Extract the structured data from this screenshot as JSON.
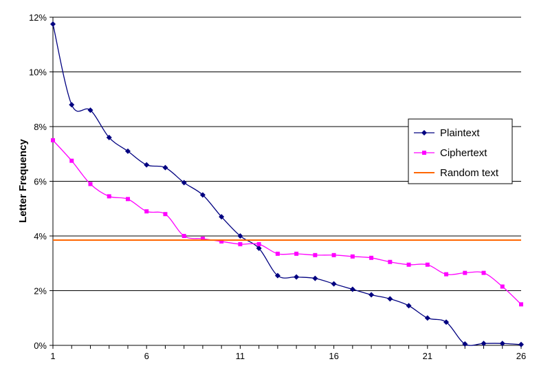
{
  "chart_data": {
    "type": "line",
    "title": "",
    "xlabel": "",
    "ylabel": "Letter Frequency",
    "x": [
      1,
      2,
      3,
      4,
      5,
      6,
      7,
      8,
      9,
      10,
      11,
      12,
      13,
      14,
      15,
      16,
      17,
      18,
      19,
      20,
      21,
      22,
      23,
      24,
      25,
      26
    ],
    "x_ticks": [
      1,
      6,
      11,
      16,
      21,
      26
    ],
    "x_tick_labels": [
      "1",
      "6",
      "11",
      "16",
      "21",
      "26"
    ],
    "xlim": [
      1,
      26
    ],
    "ylim": [
      0,
      12
    ],
    "y_ticks": [
      0,
      2,
      4,
      6,
      8,
      10,
      12
    ],
    "y_tick_labels": [
      "0%",
      "2%",
      "4%",
      "6%",
      "8%",
      "10%",
      "12%"
    ],
    "grid": "horizontal",
    "legend_position": "right",
    "series": [
      {
        "name": "Plaintext",
        "color": "#000080",
        "marker": "diamond",
        "values": [
          11.75,
          8.8,
          8.6,
          7.6,
          7.1,
          6.6,
          6.5,
          5.95,
          5.5,
          4.7,
          4.0,
          3.55,
          2.55,
          2.5,
          2.45,
          2.25,
          2.05,
          1.85,
          1.7,
          1.45,
          1.0,
          0.85,
          0.05,
          0.07,
          0.07,
          0.03
        ]
      },
      {
        "name": "Ciphertext",
        "color": "#ff00ff",
        "marker": "square",
        "values": [
          7.5,
          6.75,
          5.9,
          5.45,
          5.35,
          4.9,
          4.8,
          4.0,
          3.9,
          3.8,
          3.7,
          3.7,
          3.35,
          3.35,
          3.3,
          3.3,
          3.25,
          3.2,
          3.05,
          2.95,
          2.95,
          2.6,
          2.65,
          2.65,
          2.15,
          1.5
        ]
      },
      {
        "name": "Random text",
        "color": "#ff6600",
        "marker": "none",
        "constant": 3.85
      }
    ]
  }
}
